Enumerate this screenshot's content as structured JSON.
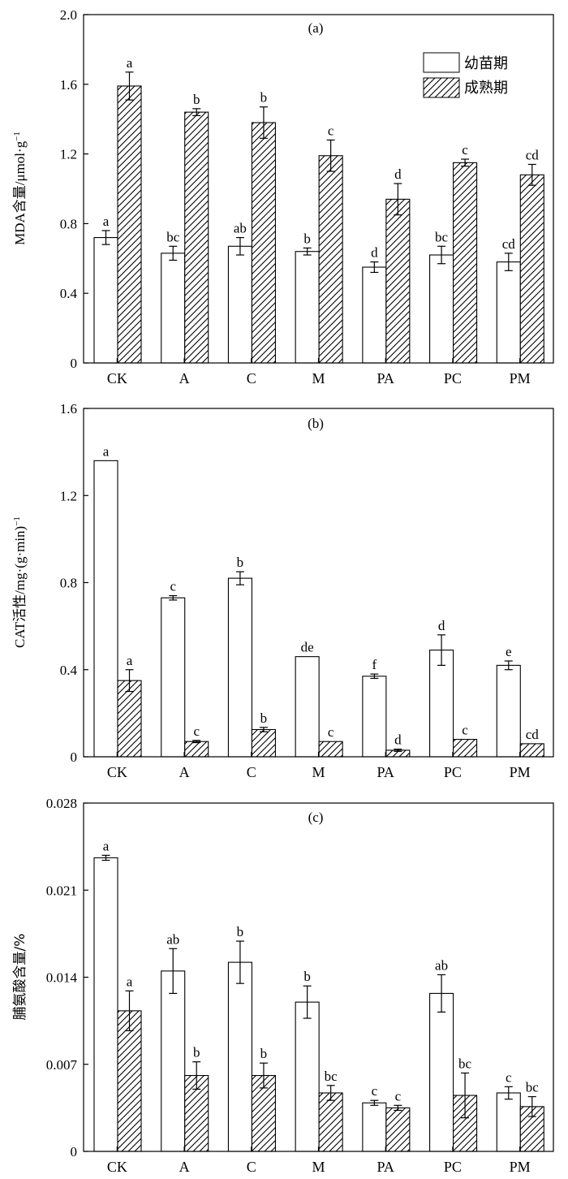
{
  "legend": {
    "seedling": "幼苗期",
    "mature": "成熟期"
  },
  "chart_data": [
    {
      "type": "bar",
      "panel": "(a)",
      "ylabel": "MDA含量/μmol·g⁻¹",
      "ylim": [
        0,
        2.0
      ],
      "yticks": [
        "0",
        "0.4",
        "0.8",
        "1.2",
        "1.6",
        "2.0"
      ],
      "ytick_values": [
        0,
        0.4,
        0.8,
        1.2,
        1.6,
        2.0
      ],
      "categories": [
        "CK",
        "A",
        "C",
        "M",
        "PA",
        "PC",
        "PM"
      ],
      "legend_position": "top-right",
      "series": [
        {
          "name": "幼苗期",
          "values": [
            0.72,
            0.63,
            0.67,
            0.64,
            0.55,
            0.62,
            0.58
          ],
          "errors": [
            0.04,
            0.04,
            0.05,
            0.02,
            0.03,
            0.05,
            0.05
          ],
          "letters": [
            "a",
            "bc",
            "ab",
            "b",
            "d",
            "bc",
            "cd"
          ]
        },
        {
          "name": "成熟期",
          "values": [
            1.59,
            1.44,
            1.38,
            1.19,
            0.94,
            1.15,
            1.08
          ],
          "errors": [
            0.08,
            0.02,
            0.09,
            0.09,
            0.09,
            0.02,
            0.06
          ],
          "letters": [
            "a",
            "b",
            "b",
            "c",
            "d",
            "c",
            "cd"
          ]
        }
      ]
    },
    {
      "type": "bar",
      "panel": "(b)",
      "ylabel": "CAT活性/mg·(g·min)⁻¹",
      "ylim": [
        0,
        1.6
      ],
      "yticks": [
        "0",
        "0.4",
        "0.8",
        "1.2",
        "1.6"
      ],
      "ytick_values": [
        0,
        0.4,
        0.8,
        1.2,
        1.6
      ],
      "categories": [
        "CK",
        "A",
        "C",
        "M",
        "PA",
        "PC",
        "PM"
      ],
      "series": [
        {
          "name": "幼苗期",
          "values": [
            1.36,
            0.73,
            0.82,
            0.46,
            0.37,
            0.49,
            0.42
          ],
          "errors": [
            0,
            0.01,
            0.03,
            0,
            0.01,
            0.07,
            0.02
          ],
          "letters": [
            "a",
            "c",
            "b",
            "de",
            "f",
            "d",
            "e"
          ]
        },
        {
          "name": "成熟期",
          "values": [
            0.35,
            0.07,
            0.125,
            0.07,
            0.03,
            0.08,
            0.06
          ],
          "errors": [
            0.05,
            0.005,
            0.01,
            0,
            0.005,
            0,
            0
          ],
          "letters": [
            "a",
            "c",
            "b",
            "c",
            "d",
            "c",
            "cd"
          ]
        }
      ]
    },
    {
      "type": "bar",
      "panel": "(c)",
      "ylabel": "脯氨酸含量/%",
      "ylim": [
        0,
        0.028
      ],
      "yticks": [
        "0",
        "0.007",
        "0.014",
        "0.021",
        "0.028"
      ],
      "ytick_values": [
        0,
        0.007,
        0.014,
        0.021,
        0.028
      ],
      "categories": [
        "CK",
        "A",
        "C",
        "M",
        "PA",
        "PC",
        "PM"
      ],
      "series": [
        {
          "name": "幼苗期",
          "values": [
            0.0236,
            0.0145,
            0.0152,
            0.012,
            0.0039,
            0.0127,
            0.0047
          ],
          "errors": [
            0.0002,
            0.0018,
            0.0017,
            0.0013,
            0.0002,
            0.0015,
            0.0005
          ],
          "letters": [
            "a",
            "ab",
            "b",
            "b",
            "c",
            "ab",
            "c"
          ]
        },
        {
          "name": "成熟期",
          "values": [
            0.0113,
            0.0061,
            0.0061,
            0.0047,
            0.0035,
            0.0045,
            0.0036
          ],
          "errors": [
            0.0016,
            0.0011,
            0.001,
            0.0006,
            0.0002,
            0.0018,
            0.0008
          ],
          "letters": [
            "a",
            "b",
            "b",
            "bc",
            "c",
            "bc",
            "bc"
          ]
        }
      ]
    }
  ]
}
